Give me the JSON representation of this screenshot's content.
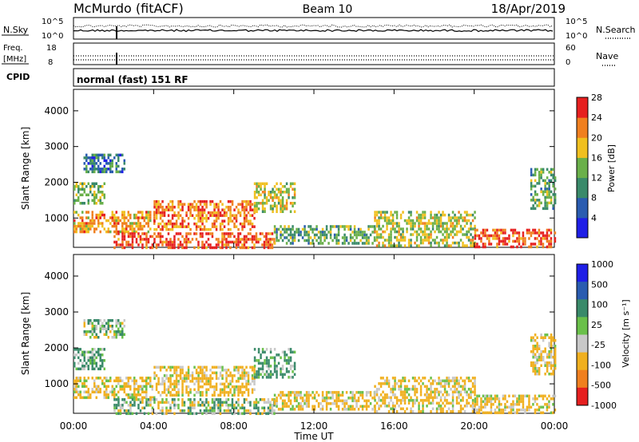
{
  "header": {
    "station": "McMurdo (fitACF)",
    "beam": "Beam 10",
    "date": "18/Apr/2019"
  },
  "noise_panel": {
    "left_label": "N.Sky",
    "right_label": "N.Search",
    "ticks_top": "10^5",
    "ticks_bottom": "10^0"
  },
  "freq_panel": {
    "left_label_1": "Freq.",
    "left_label_2": "[MHz]",
    "left_tick_top": "18",
    "left_tick_bottom": "8",
    "right_label": "Nave",
    "right_tick_top": "60",
    "right_tick_bottom": "0"
  },
  "cpid_panel": {
    "label": "CPID",
    "text": "normal (fast) 151 RF"
  },
  "chart_data": [
    {
      "type": "heatmap",
      "ylabel": "Slant Range [km]",
      "xlabel": "Time UT",
      "x_ticks": [
        "00:00",
        "04:00",
        "08:00",
        "12:00",
        "16:00",
        "20:00",
        "00:00"
      ],
      "y_ticks": [
        "1000",
        "2000",
        "3000",
        "4000"
      ],
      "ylim": [
        180,
        4600
      ],
      "colorbar": {
        "label": "Power [dB]",
        "ticks": [
          "4",
          "8",
          "12",
          "16",
          "20",
          "24",
          "28"
        ],
        "colors": [
          "#1f1fe6",
          "#2a5cb0",
          "#3a8a6a",
          "#6ab04a",
          "#f0c020",
          "#f08020",
          "#e62020"
        ]
      },
      "scatter_regions": [
        {
          "t0": 0.0,
          "t1": 4.0,
          "r0": 600,
          "r1": 1200,
          "value": 22
        },
        {
          "t0": 0.0,
          "t1": 1.5,
          "r0": 1400,
          "r1": 2000,
          "value": 16
        },
        {
          "t0": 4.0,
          "t1": 9.0,
          "r0": 700,
          "r1": 1500,
          "value": 24
        },
        {
          "t0": 9.0,
          "t1": 11.0,
          "r0": 1200,
          "r1": 2000,
          "value": 18
        },
        {
          "t0": 2.0,
          "t1": 10.0,
          "r0": 200,
          "r1": 600,
          "value": 26
        },
        {
          "t0": 10.0,
          "t1": 15.0,
          "r0": 300,
          "r1": 800,
          "value": 14
        },
        {
          "t0": 15.0,
          "t1": 20.0,
          "r0": 200,
          "r1": 1200,
          "value": 18
        },
        {
          "t0": 20.0,
          "t1": 24.0,
          "r0": 200,
          "r1": 700,
          "value": 26
        },
        {
          "t0": 22.8,
          "t1": 24.0,
          "r0": 1300,
          "r1": 2400,
          "value": 14
        },
        {
          "t0": 0.5,
          "t1": 2.5,
          "r0": 2300,
          "r1": 2800,
          "value": 10
        }
      ]
    },
    {
      "type": "heatmap",
      "ylabel": "Slant Range [km]",
      "xlabel": "Time UT",
      "x_ticks": [
        "00:00",
        "04:00",
        "08:00",
        "12:00",
        "16:00",
        "20:00",
        "00:00"
      ],
      "y_ticks": [
        "1000",
        "2000",
        "3000",
        "4000"
      ],
      "ylim": [
        180,
        4600
      ],
      "colorbar": {
        "label": "Velocity [m s⁻¹]",
        "ticks": [
          "1000",
          "500",
          "100",
          "25",
          "-25",
          "-100",
          "-500",
          "-1000"
        ],
        "colors": [
          "#1f1fe6",
          "#2a5cb0",
          "#3a8a6a",
          "#6ac04a",
          "#c8c8c8",
          "#f0b020",
          "#f08020",
          "#e62020"
        ]
      },
      "scatter_regions": [
        {
          "t0": 0.0,
          "t1": 4.0,
          "r0": 600,
          "r1": 1200,
          "value": -100
        },
        {
          "t0": 0.0,
          "t1": 1.5,
          "r0": 1400,
          "r1": 2000,
          "value": 100
        },
        {
          "t0": 4.0,
          "t1": 9.0,
          "r0": 700,
          "r1": 1500,
          "value": -100
        },
        {
          "t0": 9.0,
          "t1": 11.0,
          "r0": 1200,
          "r1": 2000,
          "value": 100
        },
        {
          "t0": 2.0,
          "t1": 10.0,
          "r0": 200,
          "r1": 600,
          "value": 25
        },
        {
          "t0": 10.0,
          "t1": 15.0,
          "r0": 300,
          "r1": 800,
          "value": -100
        },
        {
          "t0": 15.0,
          "t1": 20.0,
          "r0": 200,
          "r1": 1200,
          "value": -100
        },
        {
          "t0": 20.0,
          "t1": 24.0,
          "r0": 200,
          "r1": 700,
          "value": -100
        },
        {
          "t0": 22.8,
          "t1": 24.0,
          "r0": 1300,
          "r1": 2400,
          "value": -100
        },
        {
          "t0": 0.5,
          "t1": 2.5,
          "r0": 2300,
          "r1": 2800,
          "value": 25
        }
      ]
    }
  ]
}
